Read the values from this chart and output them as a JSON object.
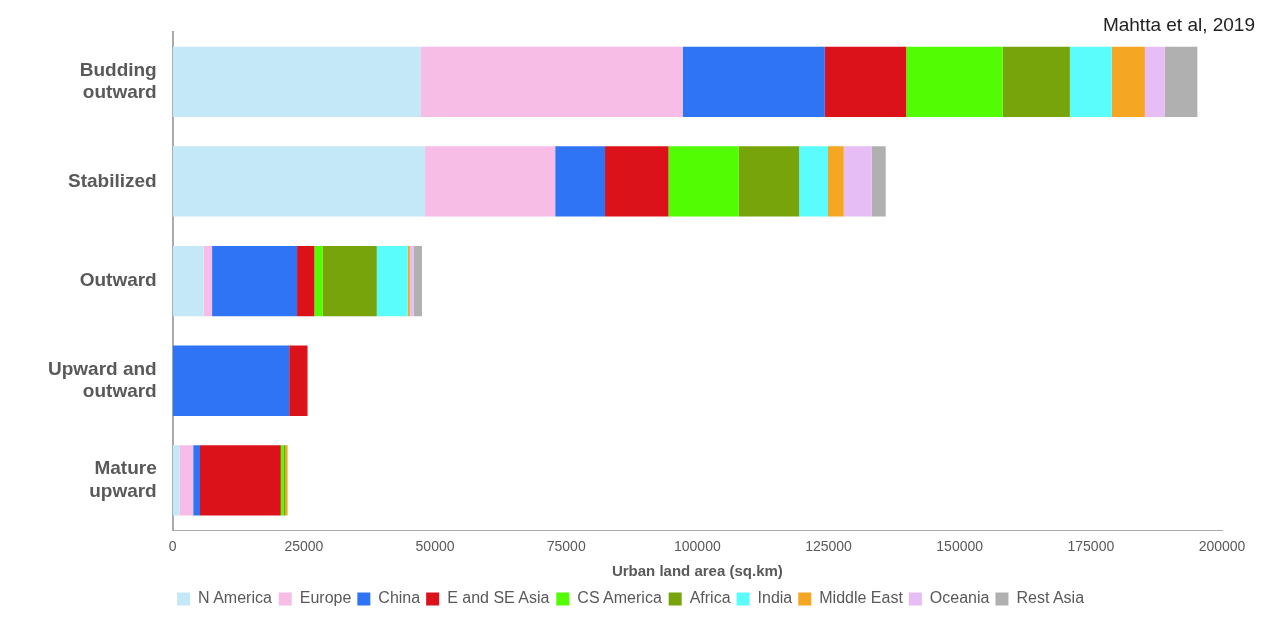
{
  "chart_data": {
    "type": "bar",
    "orientation": "horizontal",
    "stacked": true,
    "xlabel": "Urban land area (sq.km)",
    "annotations": [
      "Mahtta et al, 2019"
    ],
    "categories": [
      "Budding outward",
      "Stabilized",
      "Outward",
      "Upward and outward",
      "Mature upward"
    ],
    "xlim": [
      0,
      200000
    ],
    "xticks": [
      0,
      25000,
      50000,
      75000,
      100000,
      125000,
      150000,
      175000,
      200000
    ],
    "grid": false,
    "legend": "bottom",
    "series": [
      {
        "name": "N America",
        "color": "#c5e8f8",
        "values": [
          47300,
          48100,
          5900,
          null,
          1300
        ]
      },
      {
        "name": "Europe",
        "color": "#f8bde6",
        "values": [
          49900,
          24800,
          1600,
          null,
          2600
        ]
      },
      {
        "name": "China",
        "color": "#2f74f5",
        "values": [
          27100,
          9500,
          16200,
          22200,
          1300
        ]
      },
      {
        "name": "E and SE Asia",
        "color": "#dc121b",
        "values": [
          15500,
          12100,
          3300,
          3500,
          15400
        ]
      },
      {
        "name": "CS America",
        "color": "#52fc03",
        "values": [
          18400,
          13400,
          1600,
          null,
          600
        ]
      },
      {
        "name": "Africa",
        "color": "#76a40a",
        "values": [
          12800,
          11500,
          10300,
          null,
          300
        ]
      },
      {
        "name": "India",
        "color": "#5afcfc",
        "values": [
          8000,
          5500,
          5900,
          null,
          null
        ]
      },
      {
        "name": "Middle East",
        "color": "#f5a623",
        "values": [
          6300,
          3000,
          400,
          null,
          400
        ]
      },
      {
        "name": "Oceania",
        "color": "#e6bdf5",
        "values": [
          3800,
          5300,
          700,
          null,
          null
        ]
      },
      {
        "name": "Rest Asia",
        "color": "#b0b0b0",
        "values": [
          6200,
          2700,
          1600,
          null,
          null
        ]
      }
    ]
  }
}
